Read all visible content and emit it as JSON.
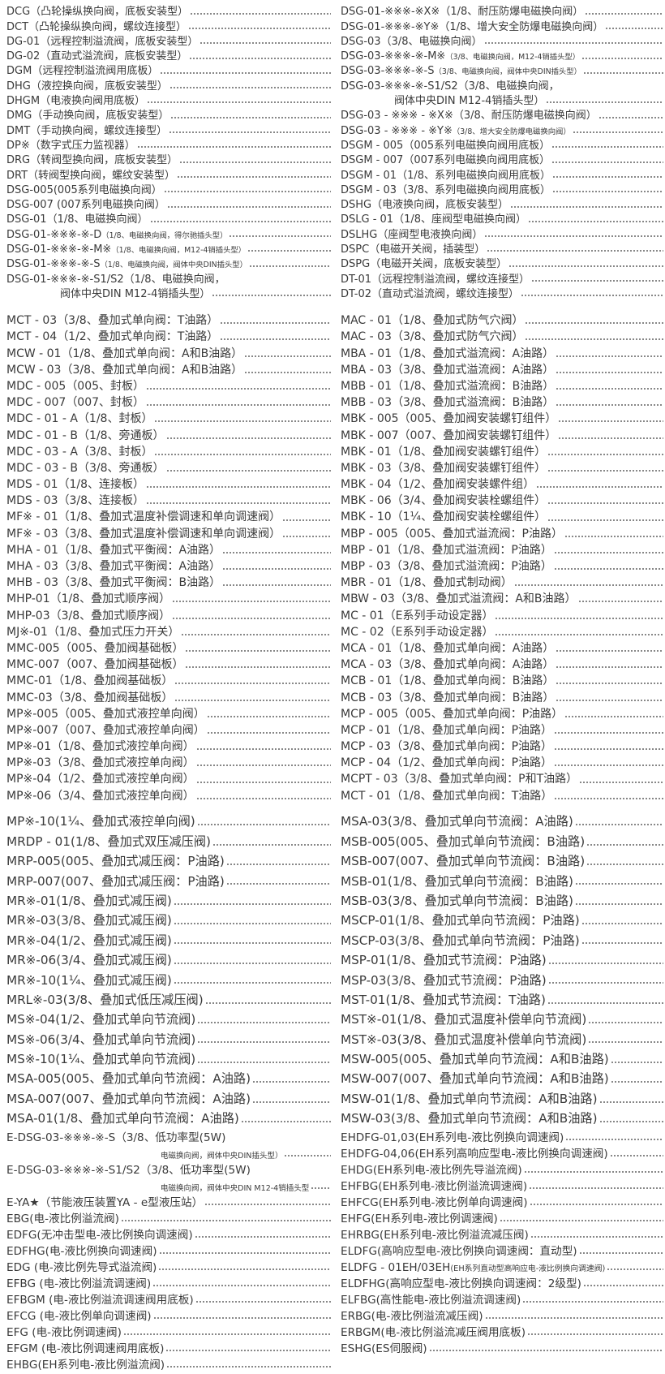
{
  "sections": [
    {
      "left": [
        {
          "code": "DCG",
          "desc": "（凸轮操纵换向阀，底板安装型）"
        },
        {
          "code": "DCT",
          "desc": "（凸轮操纵换向阀，螺纹连接型）"
        },
        {
          "code": "DG-01",
          "desc": "（远程控制溢流阀，底板安装型）"
        },
        {
          "code": "DG-02",
          "desc": "（直动式溢流阀，底板安装型）"
        },
        {
          "code": "DGM",
          "desc": "（远程控制溢流阀用底板）"
        },
        {
          "code": "DHG",
          "desc": "（液控换向阀，底板安装型）"
        },
        {
          "code": "DHGM",
          "desc": "（电液换向阀用底板）"
        },
        {
          "code": "DMG",
          "desc": "（手动换向阀，底板安装型）"
        },
        {
          "code": "DMT",
          "desc": "（手动换向阀，螺纹连接型）"
        },
        {
          "code": "DP※",
          "desc": "（数字式压力监视器）"
        },
        {
          "code": "DRG",
          "desc": "（转阀型换向阀，底板安装型）"
        },
        {
          "code": "DRT",
          "desc": "（转阀型换向阀，螺纹安装型）"
        },
        {
          "code": "DSG-005",
          "desc": "(005系列电磁换向阀）"
        },
        {
          "code": "DSG-007",
          "desc": " (007系列电磁换向阀）"
        },
        {
          "code": "DSG-01",
          "desc": "（1/8、电磁换向阀）"
        },
        {
          "code": "DSG-01-※※※-※-D",
          "desc": "（1/8、电磁换向阀，得尔驰插头型）",
          "small": true
        },
        {
          "code": "DSG-01-※※※-※-M※",
          "desc": "（1/8、电磁换向阀，M12-4销插头型）",
          "small": true
        },
        {
          "code": "DSG-01-※※※-※-S",
          "desc": "（1/8、电磁换向阀，阀体中央DIN插头型）",
          "small": true
        },
        {
          "code": "DSG-01-※※※-※-S1/S2",
          "desc": "（1/8、电磁换向阀，",
          "cont": "阀体中央DIN M12-4销插头型）"
        }
      ],
      "right": [
        {
          "code": "DSG-01-※※※-※X※",
          "desc": "（1/8、耐压防爆电磁换向阀）"
        },
        {
          "code": "DSG-01-※※※-※Y※",
          "desc": "（1/8、增大安全防爆电磁换向阀）"
        },
        {
          "code": "DSG-03",
          "desc": "（3/8、电磁换向阀）"
        },
        {
          "code": "DSG-03-※※※-※-M※",
          "desc": "（3/8、电磁换向阀，M12-4销插头型）",
          "small": true
        },
        {
          "code": "DSG-03-※※※-※-S",
          "desc": "（3/8、电磁换向阀，阀体中央DIN插头型）",
          "small": true
        },
        {
          "code": "DSG-03-※※※-※-S1/S2",
          "desc": "（3/8、电磁换向阀，",
          "cont": "阀体中央DIN M12-4销插头型）"
        },
        {
          "code": "DSG-03 - ※※※ - ※X※",
          "desc": "（3/8、耐压防爆电磁换向阀）"
        },
        {
          "code": "DSG-03 - ※※※ - ※Y※",
          "desc": "（3/8、增大安全防爆电磁换向阀）",
          "small": true
        },
        {
          "code": "DSGM - 005",
          "desc": "（005系列电磁换向阀用底板）"
        },
        {
          "code": "DSGM - 007",
          "desc": "（007系列电磁换向阀用底板）"
        },
        {
          "code": "DSGM - 01",
          "desc": "（1/8、系列电磁换向阀用底板）"
        },
        {
          "code": "DSGM - 03",
          "desc": "（3/8、系列电磁换向阀用底板）"
        },
        {
          "code": "DSHG",
          "desc": "（电液换向阀，底板安装型）"
        },
        {
          "code": "DSLG - 01",
          "desc": "（1/8、座阀型电磁换向阀）"
        },
        {
          "code": "DSLHG",
          "desc": "（座阀型电液换向阀）"
        },
        {
          "code": "DSPC",
          "desc": "（电磁开关阀，插装型）"
        },
        {
          "code": "DSPG",
          "desc": "（电磁开关阀，底板安装型）"
        },
        {
          "code": "DT-01",
          "desc": "（远程控制溢流阀，螺纹连接型）"
        },
        {
          "code": "DT-02",
          "desc": "（直动式溢流阀，螺纹连接型）"
        }
      ]
    },
    {
      "left": [
        {
          "code": "MCT - 03",
          "desc": "（3/8、叠加式单向阀：T油路）"
        },
        {
          "code": "MCT - 04",
          "desc": "（1/2、叠加式单向阀：T油路）"
        },
        {
          "code": "MCW - 01",
          "desc": "（1/8、叠加式单向阀：A和B油路）"
        },
        {
          "code": "MCW - 03",
          "desc": "（3/8、叠加式单向阀：A和B油路）"
        },
        {
          "code": "MDC - 005",
          "desc": "（005、封板）"
        },
        {
          "code": "MDC - 007",
          "desc": "（007、封板）"
        },
        {
          "code": "MDC - 01 - A",
          "desc": "（1/8、封板）"
        },
        {
          "code": "MDC - 01 - B",
          "desc": "（1/8、旁通板）"
        },
        {
          "code": "MDC - 03 - A",
          "desc": "（3/8、封板）"
        },
        {
          "code": "MDC - 03 - B",
          "desc": "（3/8、旁通板）"
        },
        {
          "code": "MDS - 01",
          "desc": "（1/8、连接板）"
        },
        {
          "code": "MDS - 03",
          "desc": "（3/8、连接板）"
        },
        {
          "code": "MF※ - 01",
          "desc": "（1/8、叠加式温度补偿调速和单向调速阀）"
        },
        {
          "code": "MF※ - 03",
          "desc": "（3/8、叠加式温度补偿调速和单向调速阀）"
        },
        {
          "code": "MHA - 01",
          "desc": "（1/8、叠加式平衡阀：A油路）"
        },
        {
          "code": "MHA - 03",
          "desc": "（3/8、叠加式平衡阀：A油路）"
        },
        {
          "code": "MHB - 03",
          "desc": "（3/8、叠加式平衡阀：B油路）"
        },
        {
          "code": "MHP-01",
          "desc": "（1/8、叠加式顺序阀）"
        },
        {
          "code": "MHP-03",
          "desc": "（3/8、叠加式顺序阀）"
        },
        {
          "code": "MJ※-01",
          "desc": "（1/8、叠加式压力开关）"
        },
        {
          "code": "MMC-005",
          "desc": "（005、叠加阀基础板）"
        },
        {
          "code": "MMC-007",
          "desc": "（007、叠加阀基础板）"
        },
        {
          "code": "MMC-01",
          "desc": "（1/8、叠加阀基础板）"
        },
        {
          "code": "MMC-03",
          "desc": "（3/8、叠加阀基础板）"
        },
        {
          "code": "MP※-005",
          "desc": "（005、叠加式液控单向阀）"
        },
        {
          "code": "MP※-007",
          "desc": "（007、叠加式液控单向阀）"
        },
        {
          "code": "MP※-01",
          "desc": "（1/8、叠加式液控单向阀）"
        },
        {
          "code": "MP※-03",
          "desc": "（3/8、叠加式液控单向阀）"
        },
        {
          "code": "MP※-04",
          "desc": "（1/2、叠加式液控单向阀）"
        },
        {
          "code": "MP※-06",
          "desc": "（3/4、叠加式液控单向阀）"
        }
      ],
      "right": [
        {
          "code": "MAC - 01",
          "desc": "（1/8、叠加式防气穴阀）"
        },
        {
          "code": "MAC - 03",
          "desc": "（3/8、叠加式防气穴阀）"
        },
        {
          "code": "MBA - 01",
          "desc": "（1/8、叠加式溢流阀：A油路）"
        },
        {
          "code": "MBA - 03",
          "desc": "（3/8、叠加式溢流阀：A油路）"
        },
        {
          "code": "MBB - 01",
          "desc": "（1/8、叠加式溢流阀：B油路）"
        },
        {
          "code": "MBB - 03",
          "desc": "（3/8、叠加式溢流阀：B油路）"
        },
        {
          "code": "MBK - 005",
          "desc": "（005、叠加阀安装螺钉组件）"
        },
        {
          "code": "MBK - 007",
          "desc": "（007、叠加阀安装螺钉组件）"
        },
        {
          "code": "MBK - 01",
          "desc": "（1/8、叠加阀安装螺钉组件）"
        },
        {
          "code": "MBK - 03",
          "desc": "（3/8、叠加阀安装螺钉组件）"
        },
        {
          "code": "MBK - 04",
          "desc": "（1/2、叠加阀安装螺件组）"
        },
        {
          "code": "MBK - 06",
          "desc": "（3/4、叠加阀安装栓螺组件）"
        },
        {
          "code": "MBK - 10",
          "desc": "（1¼、叠加阀安装栓螺组件）"
        },
        {
          "code": "MBP - 005",
          "desc": "（005、叠加式溢流阀：P油路）"
        },
        {
          "code": "MBP - 01",
          "desc": "（1/8、叠加式溢流阀：P油路）"
        },
        {
          "code": "MBP - 03",
          "desc": "（3/8、叠加式溢流阀：P油路）"
        },
        {
          "code": "MBR - 01",
          "desc": "（1/8、叠加式制动阀）"
        },
        {
          "code": "MBW - 03",
          "desc": "（3/8、叠加式溢流阀：A和B油路）"
        },
        {
          "code": "MC - 01",
          "desc": "（E系列手动设定器）"
        },
        {
          "code": "MC - 02",
          "desc": "（E系列手动设定器）"
        },
        {
          "code": "MCA - 01",
          "desc": "（1/8、叠加式单向阀：A油路）"
        },
        {
          "code": "MCA - 03",
          "desc": "（3/8、叠加式单向阀：A油路）"
        },
        {
          "code": "MCB - 01",
          "desc": "（1/8、叠加式单向阀：B油路）"
        },
        {
          "code": "MCB - 03",
          "desc": "（3/8、叠加式单向阀：B油路）"
        },
        {
          "code": "MCP - 005",
          "desc": "（005、叠加式单向阀：P油路）"
        },
        {
          "code": "MCP - 01",
          "desc": "（1/8、叠加式单向阀：P油路）"
        },
        {
          "code": "MCP - 03",
          "desc": "（3/8、叠加式单向阀：P油路）"
        },
        {
          "code": "MCP - 04",
          "desc": "（1/2、叠加式单向阀：P油路）"
        },
        {
          "code": "MCPT - 03",
          "desc": "（3/8、叠加式单向阀：P和T油路）"
        },
        {
          "code": "MCT - 01",
          "desc": "（1/8、叠加式单向阀：T油路）"
        }
      ]
    },
    {
      "left": [
        {
          "code": "MP※-10",
          "desc": "(1¼、叠加式液控单向阀)"
        },
        {
          "code": "MRDP - 01",
          "desc": "(1/8、叠加式双压减压阀)"
        },
        {
          "code": "MRP-005",
          "desc": "(005、叠加式减压阀：P油路)"
        },
        {
          "code": "MRP-007",
          "desc": "(007、叠加式减压阀：P油路)"
        },
        {
          "code": "MR※-01",
          "desc": "(1/8、叠加式减压阀)"
        },
        {
          "code": "MR※-03",
          "desc": "(3/8、叠加式减压阀)"
        },
        {
          "code": "MR※-04",
          "desc": "(1/2、叠加式减压阀)"
        },
        {
          "code": "MR※-06",
          "desc": "(3/4、叠加式减压阀)"
        },
        {
          "code": "MR※-10",
          "desc": "(1¼、叠加式减压阀)"
        },
        {
          "code": "MRL※-03",
          "desc": "(3/8、叠加式低压减压阀)"
        },
        {
          "code": "MS※-04",
          "desc": "(1/2、叠加式单向节流阀)"
        },
        {
          "code": "MS※-06",
          "desc": "(3/4、叠加式单向节流阀)"
        },
        {
          "code": "MS※-10",
          "desc": "(1¼、叠加式单向节流阀)"
        },
        {
          "code": "MSA-005",
          "desc": "(005、叠加式单向节流阀：A油路)"
        },
        {
          "code": "MSA-007",
          "desc": "(007、叠加式单向节流阀：A油路)"
        },
        {
          "code": "MSA-01",
          "desc": "(1/8、叠加式单向节流阀：A油路)"
        }
      ],
      "right": [
        {
          "code": "MSA-03",
          "desc": "(3/8、叠加式单向节流阀：A油路)"
        },
        {
          "code": "MSB-005",
          "desc": "(005、叠加式单向节流阀：B油路)"
        },
        {
          "code": "MSB-007",
          "desc": "(007、叠加式单向节流阀：B油路)"
        },
        {
          "code": "MSB-01",
          "desc": "(1/8、叠加式单向节流阀：B油路)"
        },
        {
          "code": "MSB-03",
          "desc": "(3/8、叠加式单向节流阀：B油路)"
        },
        {
          "code": "MSCP-01",
          "desc": "(1/8、叠加式单向节流阀：P油路)"
        },
        {
          "code": "MSCP-03",
          "desc": "(3/8、叠加式单向节流阀：P油路)"
        },
        {
          "code": "MSP-01",
          "desc": "(1/8、叠加式节流阀：P油路)"
        },
        {
          "code": "MSP-03",
          "desc": "(3/8、叠加式节流阀：P油路)"
        },
        {
          "code": "MST-01",
          "desc": "(1/8、叠加式节流阀：T油路)"
        },
        {
          "code": "MST※-01",
          "desc": "(1/8、叠加式温度补偿单向节流阀)"
        },
        {
          "code": "MST※-03",
          "desc": "(3/8、叠加式温度补偿单向节流阀)"
        },
        {
          "code": "MSW-005",
          "desc": "(005、叠加式单向节流阀：A和B油路)"
        },
        {
          "code": "MSW-007",
          "desc": "(007、叠加式单向节流阀：A和B油路)"
        },
        {
          "code": "MSW-01",
          "desc": "(1/8、叠加式单向节流阀：A和B油路)"
        },
        {
          "code": "MSW-03",
          "desc": "(3/8、叠加式单向节流阀：A和B油路)"
        }
      ]
    },
    {
      "left": [
        {
          "code": "E-DSG-03-※※※-※-S",
          "desc": "（3/8、低功率型(5W)",
          "cont": "电磁换向阀，阀体中央DIN插头型）",
          "noLead": true
        },
        {
          "code": "E-DSG-03-※※※-※-S1/S2",
          "desc": "（3/8、低功率型(5W)",
          "cont": "电磁换向阀，阀体中央DIN M12-4销插头型",
          "noLead": true
        },
        {
          "code": "E-YA★",
          "desc": "（节能液压装置YA - e型液压站）"
        },
        {
          "code": "EBG",
          "desc": "(电-液比例溢流阀)"
        },
        {
          "code": "EDFG",
          "desc": "(无冲击型电-液比例换向调速阀)"
        },
        {
          "code": "EDFHG",
          "desc": "(电-液比例换向调速阀)"
        },
        {
          "code": "EDG",
          "desc": " (电-液比例先导式溢流阀)"
        },
        {
          "code": "EFBG",
          "desc": " (电-液比例溢流调速阀)"
        },
        {
          "code": "EFBGM",
          "desc": " (电-液比例溢流调速阀用底板)"
        },
        {
          "code": "EFCG",
          "desc": " (电-液比例单向调速阀)"
        },
        {
          "code": "EFG",
          "desc": " (电-液比例调速阀)"
        },
        {
          "code": "EFGM",
          "desc": " (电-液比例调速阀用底板)"
        },
        {
          "code": "EHBG",
          "desc": "(EH系列电-液比例溢流阀)"
        }
      ],
      "right": [
        {
          "code": "EHDFG-01,03",
          "desc": "(EH系列电-液比例换向调速阀)"
        },
        {
          "code": "EHDFG-04,06",
          "desc": "(EH系列高响应型电-液比例换向调速阀)"
        },
        {
          "code": "EHDG",
          "desc": "(EH系列电-液比例先导溢流阀)"
        },
        {
          "code": "EHFBG",
          "desc": "(EH系列电-液比例溢流调速阀)"
        },
        {
          "code": "EHFCG",
          "desc": "(EH系列电-液比例单向调速阀)"
        },
        {
          "code": "EHFG",
          "desc": "(EH系列电-液比例调速阀)"
        },
        {
          "code": "EHRBG",
          "desc": "(EH系列电-液比例溢流减压阀)"
        },
        {
          "code": "ELDFG",
          "desc": "(高响应型电-液比例换向调速阀：直动型)"
        },
        {
          "code": "ELDFG - 01EH/03EH",
          "desc": "(EH系列直动型高响应电-液比例换向调速阀)",
          "small": true
        },
        {
          "code": "ELDFHG",
          "desc": "(高响应型电-液比例换向调速阀：2级型)"
        },
        {
          "code": "ELFBG",
          "desc": "(高性能电-液比例溢流调速阀)"
        },
        {
          "code": "ERBG",
          "desc": "(电-液比例溢流减压阀)"
        },
        {
          "code": "ERBGM",
          "desc": "(电-液比例溢流减压阀用底板)"
        },
        {
          "code": "ESHG",
          "desc": "(ES伺服阀)"
        }
      ]
    }
  ]
}
